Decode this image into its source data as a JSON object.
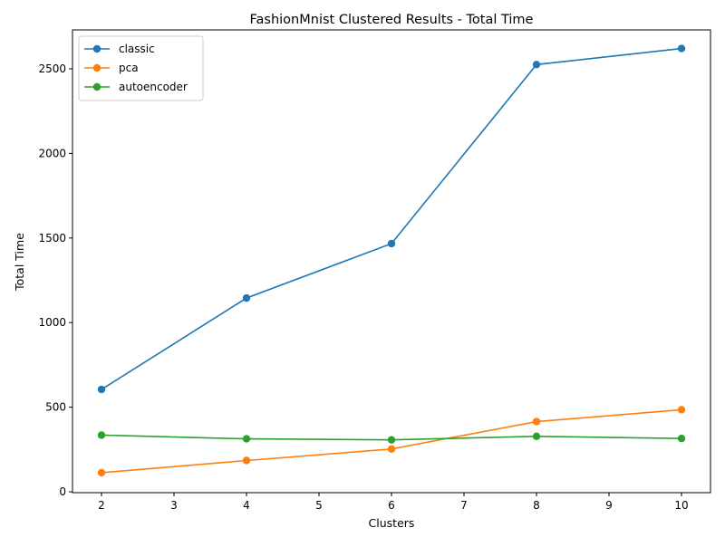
{
  "chart_data": {
    "type": "line",
    "title": "FashionMnist Clustered Results - Total Time",
    "xlabel": "Clusters",
    "ylabel": "Total Time",
    "x": [
      2,
      4,
      6,
      8,
      10
    ],
    "xlim": [
      1.6,
      10.4
    ],
    "ylim": [
      -5,
      2730
    ],
    "xticks": [
      "2",
      "3",
      "4",
      "5",
      "6",
      "7",
      "8",
      "9",
      "10"
    ],
    "yticks": [
      "0",
      "500",
      "1000",
      "1500",
      "2000",
      "2500"
    ],
    "grid": false,
    "legend_position": "upper left",
    "series": [
      {
        "name": "classic",
        "color": "#1f77b4",
        "values": [
          605,
          1145,
          1467,
          2525,
          2620
        ]
      },
      {
        "name": "pca",
        "color": "#ff7f0e",
        "values": [
          113,
          185,
          253,
          415,
          485
        ]
      },
      {
        "name": "autoencoder",
        "color": "#2ca02c",
        "values": [
          335,
          313,
          307,
          328,
          315
        ]
      }
    ]
  }
}
